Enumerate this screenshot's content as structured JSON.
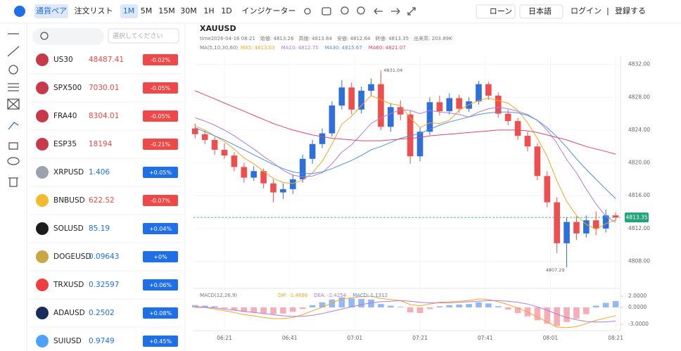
{
  "toolbar": {
    "tabs": [
      "通貨ペア",
      "注文リスト"
    ],
    "intervals": [
      "1M",
      "5M",
      "15M",
      "30M",
      "1H",
      "1D"
    ],
    "indicator": "インジケーター",
    "loan": "ローン",
    "language": "日本語",
    "login": "ログイン",
    "separator": "|",
    "register": "登録する"
  },
  "watchlist": {
    "search_placeholder": "選択してください",
    "rows": [
      {
        "symbol": "US30",
        "price": "48487.41",
        "change": "-0.02%",
        "trend": "down",
        "icon_color": "#c8394a"
      },
      {
        "symbol": "SPX500",
        "price": "7030.01",
        "change": "-0.05%",
        "trend": "down",
        "icon_color": "#c8394a"
      },
      {
        "symbol": "FRA40",
        "price": "8304.01",
        "change": "-0.05%",
        "trend": "down",
        "icon_color": "#c8394a"
      },
      {
        "symbol": "ESP35",
        "price": "18194",
        "change": "-0.21%",
        "trend": "down",
        "icon_color": "#c8394a"
      },
      {
        "symbol": "XRPUSD",
        "price": "1.406",
        "change": "+0.05%",
        "trend": "up",
        "icon_color": "#9aa3ad"
      },
      {
        "symbol": "BNBUSD",
        "price": "622.52",
        "change": "-0.07%",
        "trend": "down",
        "icon_color": "#f3ba2f"
      },
      {
        "symbol": "SOLUSD",
        "price": "85.19",
        "change": "+0.04%",
        "trend": "up",
        "icon_color": "#1c1c1c"
      },
      {
        "symbol": "DOGEUSD",
        "price": "0.09643",
        "change": "+0%",
        "trend": "up",
        "icon_color": "#c9a646"
      },
      {
        "symbol": "TRXUSD",
        "price": "0.32597",
        "change": "+0.06%",
        "trend": "up",
        "icon_color": "#ef3e3e"
      },
      {
        "symbol": "ADAUSD",
        "price": "0.2502",
        "change": "+0.08%",
        "trend": "up",
        "icon_color": "#1a2c5b"
      },
      {
        "symbol": "SUIUSD",
        "price": "0.9749",
        "change": "+0.45%",
        "trend": "up",
        "icon_color": "#4da2ff"
      }
    ],
    "up_color": "#1f6fe8",
    "down_color": "#f04848"
  },
  "chart": {
    "type": "candlestick",
    "symbol": "XAUUSD",
    "info": [
      "time2026-04-16 08:21",
      "始値: 4813.26",
      "高値: 4813.84",
      "安値: 4812.64",
      "終値: 4813.35",
      "出来高: 203.89K"
    ],
    "ma_label": "MA(5,10,30,60)",
    "xlim": [
      371.5,
      502.5
    ],
    "xticks": [
      {
        "value": 381,
        "label": "06:21"
      },
      {
        "value": 401,
        "label": "06:41"
      },
      {
        "value": 421,
        "label": "07:01"
      },
      {
        "value": 441,
        "label": "07:21"
      },
      {
        "value": 461,
        "label": "07:41"
      },
      {
        "value": 481,
        "label": "08:01"
      },
      {
        "value": 501,
        "label": "08:21"
      }
    ],
    "ylim": [
      4804.7,
      4833.0
    ],
    "yticks": [
      {
        "value": 4808,
        "label": "4808.00"
      },
      {
        "value": 4812,
        "label": "4812.00"
      },
      {
        "value": 4816,
        "label": "4816.00"
      },
      {
        "value": 4820,
        "label": "4820.00"
      },
      {
        "value": 4824,
        "label": "4824.00"
      },
      {
        "value": 4828,
        "label": "4828.00"
      },
      {
        "value": 4832,
        "label": "4832.00"
      }
    ],
    "up_color": "#2f6fdb",
    "down_color": "#ef4e4e",
    "last_price_color": "#22a37a",
    "x": [
      372,
      375,
      378,
      381,
      384,
      387,
      390,
      393,
      396,
      399,
      402,
      405,
      408,
      411,
      414,
      417,
      420,
      423,
      426,
      429,
      432,
      435,
      438,
      441,
      444,
      447,
      450,
      453,
      456,
      459,
      462,
      465,
      468,
      471,
      474,
      477,
      480,
      483,
      486,
      489,
      492,
      495,
      498,
      501
    ],
    "candles": [
      [
        4824.2,
        4824.8,
        4823.0,
        4823.5
      ],
      [
        4823.5,
        4824.0,
        4822.3,
        4822.8
      ],
      [
        4822.8,
        4823.2,
        4821.0,
        4821.6
      ],
      [
        4821.6,
        4822.4,
        4820.5,
        4820.9
      ],
      [
        4820.9,
        4821.3,
        4819.0,
        4819.5
      ],
      [
        4819.5,
        4820.0,
        4817.6,
        4818.2
      ],
      [
        4818.2,
        4819.6,
        4817.8,
        4819.0
      ],
      [
        4819.0,
        4819.3,
        4816.9,
        4817.5
      ],
      [
        4817.5,
        4818.0,
        4815.2,
        4816.4
      ],
      [
        4816.4,
        4817.5,
        4815.6,
        4816.8
      ],
      [
        4816.8,
        4818.6,
        4816.2,
        4818.0
      ],
      [
        4818.0,
        4821.0,
        4817.6,
        4820.5
      ],
      [
        4820.5,
        4822.8,
        4819.9,
        4822.3
      ],
      [
        4822.3,
        4824.2,
        4821.8,
        4823.6
      ],
      [
        4823.6,
        4827.5,
        4823.2,
        4827.0
      ],
      [
        4827.0,
        4830.1,
        4826.5,
        4829.2
      ],
      [
        4829.2,
        4829.8,
        4825.9,
        4826.5
      ],
      [
        4826.5,
        4829.3,
        4826.0,
        4828.8
      ],
      [
        4828.8,
        4830.3,
        4828.2,
        4829.6
      ],
      [
        4829.6,
        4831.04,
        4824.0,
        4824.4
      ],
      [
        4824.4,
        4827.3,
        4823.8,
        4826.8
      ],
      [
        4826.8,
        4827.6,
        4825.2,
        4825.9
      ],
      [
        4825.9,
        4826.4,
        4819.9,
        4820.8
      ],
      [
        4820.8,
        4824.3,
        4820.2,
        4823.8
      ],
      [
        4823.8,
        4828.0,
        4823.4,
        4827.4
      ],
      [
        4827.4,
        4828.2,
        4825.8,
        4826.3
      ],
      [
        4826.3,
        4828.5,
        4825.9,
        4827.9
      ],
      [
        4827.9,
        4828.3,
        4826.1,
        4826.6
      ],
      [
        4826.6,
        4828.0,
        4826.2,
        4827.5
      ],
      [
        4827.5,
        4830.0,
        4827.1,
        4829.6
      ],
      [
        4829.6,
        4829.9,
        4827.7,
        4828.2
      ],
      [
        4828.2,
        4828.6,
        4825.5,
        4826.0
      ],
      [
        4826.0,
        4826.5,
        4824.6,
        4825.1
      ],
      [
        4825.1,
        4825.5,
        4822.8,
        4823.3
      ],
      [
        4823.3,
        4823.8,
        4821.4,
        4822.0
      ],
      [
        4822.0,
        4822.4,
        4817.9,
        4818.4
      ],
      [
        4818.4,
        4819.0,
        4814.6,
        4815.2
      ],
      [
        4815.2,
        4815.8,
        4809.0,
        4810.2
      ],
      [
        4810.2,
        4813.4,
        4807.29,
        4812.8
      ],
      [
        4812.8,
        4813.5,
        4810.6,
        4811.4
      ],
      [
        4811.4,
        4813.6,
        4810.9,
        4813.0
      ],
      [
        4813.0,
        4814.1,
        4811.2,
        4812.0
      ],
      [
        4812.0,
        4814.3,
        4811.5,
        4813.6
      ],
      [
        4813.6,
        4814.0,
        4812.9,
        4813.35
      ]
    ],
    "ma": [
      {
        "name": "MA5:",
        "color": "#f5a623",
        "values": [
          4824.5,
          4824.0,
          4823.3,
          4822.6,
          4821.7,
          4820.6,
          4819.9,
          4819.0,
          4818.1,
          4817.6,
          4817.5,
          4817.9,
          4818.8,
          4820.2,
          4822.3,
          4824.7,
          4825.7,
          4827.0,
          4828.2,
          4827.7,
          4827.2,
          4827.0,
          4825.5,
          4824.3,
          4824.9,
          4824.8,
          4825.2,
          4826.4,
          4827.1,
          4827.6,
          4827.9,
          4827.6,
          4827.3,
          4826.4,
          4824.9,
          4823.0,
          4820.8,
          4817.8,
          4815.3,
          4813.6,
          4812.5,
          4811.9,
          4812.6,
          4813.03
        ]
      },
      {
        "name": "MA10:",
        "color": "#b07cd8",
        "values": [
          4825.5,
          4825.1,
          4824.6,
          4824.0,
          4823.3,
          4822.5,
          4821.7,
          4820.8,
          4820.0,
          4819.1,
          4818.5,
          4818.3,
          4818.4,
          4818.8,
          4819.9,
          4821.3,
          4822.2,
          4823.5,
          4824.8,
          4825.5,
          4826.0,
          4826.5,
          4826.4,
          4826.0,
          4826.4,
          4826.2,
          4826.1,
          4825.9,
          4825.6,
          4826.2,
          4826.6,
          4826.8,
          4826.6,
          4826.3,
          4825.9,
          4825.2,
          4824.0,
          4822.4,
          4820.4,
          4818.8,
          4816.8,
          4815.0,
          4813.5,
          4812.75
        ]
      },
      {
        "name": "MA30:",
        "color": "#4a90e2",
        "values": [
          4824.3,
          4823.8,
          4823.3,
          4822.8,
          4822.2,
          4821.6,
          4821.0,
          4820.4,
          4819.8,
          4819.3,
          4818.9,
          4818.7,
          4818.7,
          4818.9,
          4819.3,
          4819.8,
          4820.3,
          4820.9,
          4821.6,
          4822.0,
          4822.5,
          4823.0,
          4823.3,
          4823.6,
          4824.1,
          4824.6,
          4825.0,
          4825.3,
          4825.6,
          4825.9,
          4826.1,
          4826.2,
          4826.2,
          4826.1,
          4825.8,
          4825.2,
          4824.3,
          4823.2,
          4821.9,
          4820.5,
          4819.2,
          4818.0,
          4816.8,
          4815.67
        ]
      },
      {
        "name": "MA60:",
        "color": "#e0446a",
        "values": [
          4828.8,
          4828.3,
          4827.8,
          4827.3,
          4826.8,
          4826.3,
          4825.8,
          4825.3,
          4824.8,
          4824.4,
          4824.0,
          4823.7,
          4823.4,
          4823.2,
          4823.0,
          4822.9,
          4822.8,
          4822.7,
          4822.7,
          4822.7,
          4822.8,
          4822.9,
          4823.0,
          4823.1,
          4823.3,
          4823.4,
          4823.5,
          4823.6,
          4823.7,
          4823.8,
          4823.9,
          4824.0,
          4824.0,
          4824.0,
          4823.9,
          4823.7,
          4823.4,
          4823.1,
          4822.8,
          4822.4,
          4822.0,
          4821.7,
          4821.4,
          4821.07
        ]
      }
    ],
    "macd": {
      "label": "MACD(12,26,9)",
      "ylim": [
        -3.875,
        3.25
      ],
      "yticks": [
        {
          "value": 2,
          "label": "2.0000"
        },
        {
          "value": 0,
          "label": "0.0000"
        },
        {
          "value": -3,
          "label": "-3.0000"
        }
      ],
      "lines": [
        {
          "name": "DIF:",
          "color": "#f5a623",
          "values": [
            0.2,
            0.0,
            -0.3,
            -0.6,
            -0.9,
            -1.3,
            -1.5,
            -1.8,
            -2.0,
            -2.0,
            -1.8,
            -1.3,
            -0.6,
            0.0,
            0.8,
            1.5,
            1.7,
            1.9,
            2.0,
            1.6,
            1.4,
            1.2,
            0.5,
            0.3,
            0.6,
            0.9,
            1.0,
            1.1,
            1.2,
            1.5,
            1.4,
            1.0,
            0.5,
            -0.1,
            -0.8,
            -1.7,
            -2.6,
            -3.5,
            -3.6,
            -3.4,
            -2.9,
            -2.3,
            -1.9,
            -1.4696
          ]
        },
        {
          "name": "DEA:",
          "color": "#b07cd8",
          "values": [
            0.0,
            0.0,
            -0.1,
            -0.3,
            -0.5,
            -0.7,
            -0.9,
            -1.1,
            -1.3,
            -1.5,
            -1.6,
            -1.6,
            -1.4,
            -1.1,
            -0.7,
            -0.3,
            0.1,
            0.5,
            0.8,
            1.0,
            1.1,
            1.2,
            1.1,
            0.9,
            0.8,
            0.8,
            0.8,
            0.9,
            1.0,
            1.1,
            1.2,
            1.2,
            1.1,
            0.9,
            0.6,
            0.1,
            -0.5,
            -1.2,
            -1.8,
            -2.2,
            -2.5,
            -2.6,
            -2.6,
            -2.4254
          ]
        }
      ],
      "hist": {
        "name": "MACD:",
        "color": "#5b84e6",
        "up_color": "#79a6ef",
        "down_color": "#f29aa6",
        "values": [
          0.4,
          0.3,
          0.2,
          -0.2,
          -0.5,
          -0.8,
          -0.9,
          -1.1,
          -1.2,
          -1.1,
          -0.8,
          -0.3,
          0.4,
          0.9,
          1.4,
          1.8,
          1.6,
          1.5,
          1.4,
          0.6,
          0.3,
          0.1,
          -0.9,
          -1.0,
          -0.3,
          0.2,
          0.4,
          0.5,
          0.6,
          0.9,
          0.7,
          0.2,
          -0.4,
          -1.0,
          -1.6,
          -2.3,
          -2.9,
          -3.3,
          -2.6,
          -2.0,
          -1.2,
          0.3,
          0.8,
          1.1312
        ]
      }
    }
  }
}
